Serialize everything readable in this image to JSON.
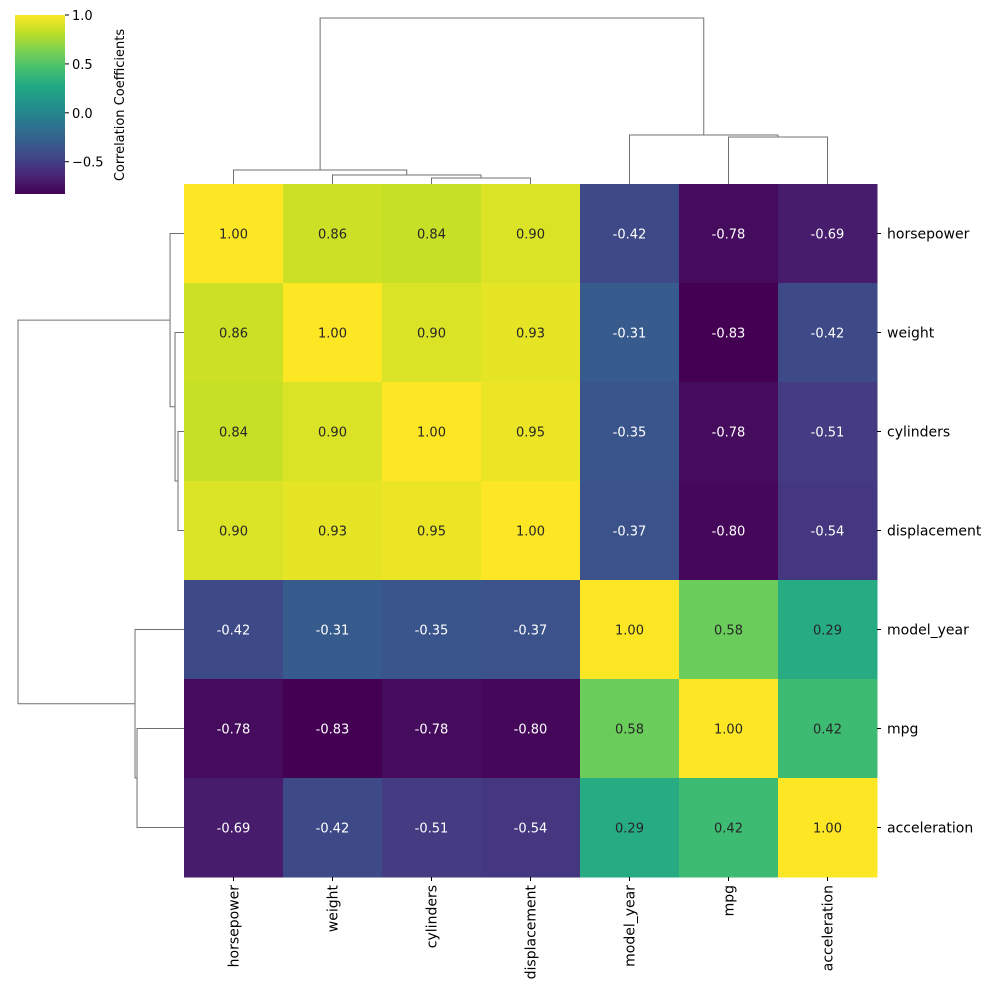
{
  "chart_data": {
    "type": "heatmap",
    "subtype": "clustermap",
    "colormap": "viridis",
    "vmin": -0.83,
    "vmax": 1.0,
    "annotated": true,
    "value_format": "0.00",
    "rows": [
      "horsepower",
      "weight",
      "cylinders",
      "displacement",
      "model_year",
      "mpg",
      "acceleration"
    ],
    "columns": [
      "horsepower",
      "weight",
      "cylinders",
      "displacement",
      "model_year",
      "mpg",
      "acceleration"
    ],
    "values": [
      [
        1.0,
        0.86,
        0.84,
        0.9,
        -0.42,
        -0.78,
        -0.69
      ],
      [
        0.86,
        1.0,
        0.9,
        0.93,
        -0.31,
        -0.83,
        -0.42
      ],
      [
        0.84,
        0.9,
        1.0,
        0.95,
        -0.35,
        -0.78,
        -0.51
      ],
      [
        0.9,
        0.93,
        0.95,
        1.0,
        -0.37,
        -0.8,
        -0.54
      ],
      [
        -0.42,
        -0.31,
        -0.35,
        -0.37,
        1.0,
        0.58,
        0.29
      ],
      [
        -0.78,
        -0.83,
        -0.78,
        -0.8,
        0.58,
        1.0,
        0.42
      ],
      [
        -0.69,
        -0.42,
        -0.51,
        -0.54,
        0.29,
        0.42,
        1.0
      ]
    ],
    "linkage": [
      {
        "left": [
          2
        ],
        "right": [
          3
        ],
        "height": 0.036
      },
      {
        "left": [
          1
        ],
        "right": [
          2,
          3
        ],
        "height": 0.054
      },
      {
        "left": [
          0
        ],
        "right": [
          1,
          2,
          3
        ],
        "height": 0.084
      },
      {
        "left": [
          5
        ],
        "right": [
          6
        ],
        "height": 0.283
      },
      {
        "left": [
          4
        ],
        "right": [
          5,
          6
        ],
        "height": 0.295
      },
      {
        "left": [
          0,
          1,
          2,
          3
        ],
        "right": [
          4,
          5,
          6
        ],
        "height": 1.0
      }
    ],
    "colorbar": {
      "label": "Correlation Coefficients",
      "ticks": [
        1.0,
        0.5,
        0.0,
        -0.5
      ],
      "tick_labels": [
        "1.0",
        "0.5",
        "0.0",
        "−0.5"
      ]
    }
  }
}
